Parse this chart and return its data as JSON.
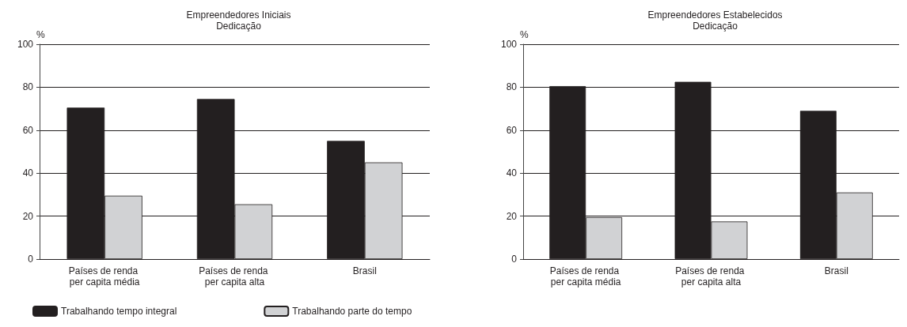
{
  "chart_data": [
    {
      "type": "bar",
      "title": "Empreendedores Iniciais",
      "subtitle": "Dedicação",
      "ylabel": "%",
      "categories": [
        "Países de renda per capita média",
        "Países de renda per capita alta",
        "Brasil"
      ],
      "series": [
        {
          "name": "Trabalhando tempo integral",
          "color": "#231f20",
          "values": [
            70.5,
            74.5,
            55
          ]
        },
        {
          "name": "Trabalhando parte do tempo",
          "color": "#d1d2d4",
          "values": [
            29.5,
            25.5,
            45
          ]
        }
      ],
      "ylim": [
        0,
        100
      ],
      "yticks": [
        0,
        20,
        40,
        60,
        80,
        100
      ],
      "grid": "y",
      "legend": "bottom"
    },
    {
      "type": "bar",
      "title": "Empreendedores Estabelecidos",
      "subtitle": "Dedicação",
      "ylabel": "%",
      "categories": [
        "Países de renda per capita média",
        "Países de renda per capita alta",
        "Brasil"
      ],
      "series": [
        {
          "color": "#231f20",
          "values": [
            80.5,
            82.5,
            69
          ]
        },
        {
          "color": "#d1d2d4",
          "values": [
            19.5,
            17.5,
            31
          ]
        }
      ],
      "ylim": [
        0,
        100
      ],
      "yticks": [
        0,
        20,
        40,
        60,
        80,
        100
      ],
      "grid": "y"
    }
  ]
}
